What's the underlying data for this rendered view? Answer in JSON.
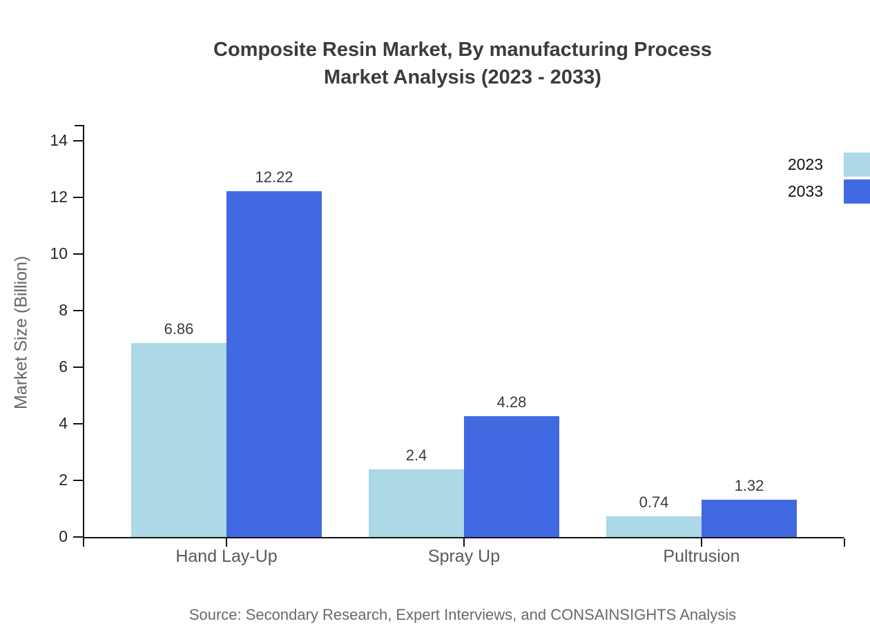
{
  "title": {
    "line1": "Composite Resin Market, By manufacturing Process",
    "line2": "Market Analysis (2023 - 2033)"
  },
  "source_note": "Source: Secondary Research, Expert Interviews, and CONSAINSIGHTS Analysis",
  "colors": {
    "series_2023": "#ADD8E6",
    "series_2033": "#4169E1",
    "axis": "#111111",
    "title_text": "#3b3b3b",
    "category_text": "#595959",
    "source_text": "#696969"
  },
  "chart_data": {
    "type": "bar",
    "title": "Composite Resin Market, By manufacturing Process Market Analysis (2023 - 2033)",
    "categories": [
      "Hand Lay-Up",
      "Spray Up",
      "Pultrusion"
    ],
    "series": [
      {
        "name": "2023",
        "color": "#ADD8E6",
        "values": [
          6.86,
          2.4,
          0.74
        ]
      },
      {
        "name": "2033",
        "color": "#4169E1",
        "values": [
          12.22,
          4.28,
          1.32
        ]
      }
    ],
    "value_labels": [
      "6.86",
      "12.22",
      "2.4",
      "4.28",
      "0.74",
      "1.32"
    ],
    "xlabel": "",
    "ylabel": "Market Size (Billion)",
    "ylim": [
      0,
      14
    ],
    "yticks": [
      0,
      2,
      4,
      6,
      8,
      10,
      12,
      14
    ],
    "grid": false,
    "legend_position": "top-right",
    "legend_entries": [
      "2023",
      "2033"
    ]
  }
}
